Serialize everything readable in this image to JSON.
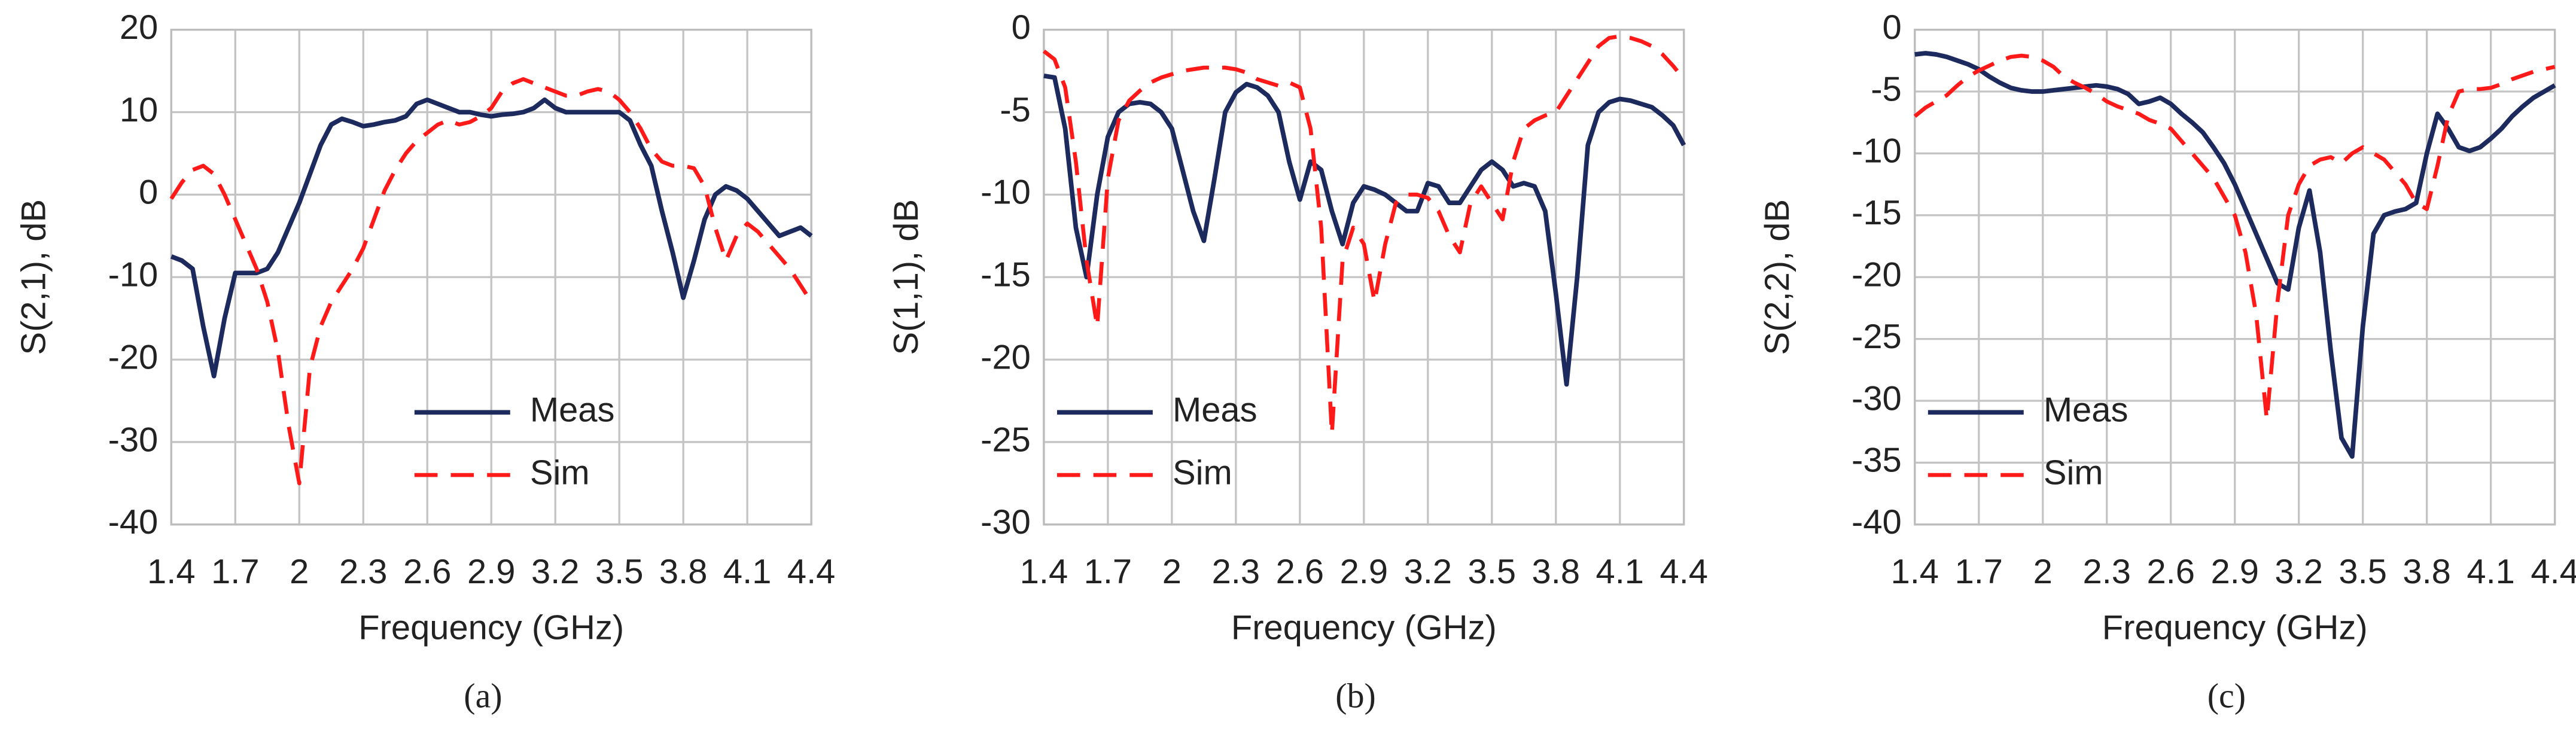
{
  "chart_data": [
    {
      "type": "line",
      "caption": "(a)",
      "x_label": "Frequency (GHz)",
      "y_label": "S(2,1), dB",
      "xlim": [
        1.4,
        4.4
      ],
      "xticks": [
        1.4,
        1.7,
        2,
        2.3,
        2.6,
        2.9,
        3.2,
        3.5,
        3.8,
        4.1,
        4.4
      ],
      "ylim": [
        -40,
        20
      ],
      "yticks": [
        -40,
        -30,
        -20,
        -10,
        0,
        10,
        20
      ],
      "grid": true,
      "legend": "lower center",
      "x": [
        1.4,
        1.45,
        1.5,
        1.55,
        1.6,
        1.65,
        1.7,
        1.75,
        1.8,
        1.85,
        1.9,
        1.95,
        2,
        2.05,
        2.1,
        2.15,
        2.2,
        2.25,
        2.3,
        2.35,
        2.4,
        2.45,
        2.5,
        2.55,
        2.6,
        2.65,
        2.7,
        2.75,
        2.8,
        2.85,
        2.9,
        2.95,
        3,
        3.05,
        3.1,
        3.15,
        3.2,
        3.25,
        3.3,
        3.35,
        3.4,
        3.45,
        3.5,
        3.55,
        3.6,
        3.65,
        3.7,
        3.75,
        3.8,
        3.85,
        3.9,
        3.95,
        4,
        4.05,
        4.1,
        4.15,
        4.2,
        4.25,
        4.3,
        4.35,
        4.4
      ],
      "series": [
        {
          "name": "Meas",
          "color": "#1c2a5e",
          "style": "solid",
          "values": [
            -7.5,
            -8,
            -9,
            -16,
            -22,
            -15,
            -9.5,
            -9.5,
            -9.5,
            -9,
            -7,
            -4,
            -1,
            2.5,
            6,
            8.5,
            9.2,
            8.8,
            8.3,
            8.5,
            8.8,
            9,
            9.5,
            11,
            11.5,
            11,
            10.5,
            10,
            10,
            9.7,
            9.5,
            9.7,
            9.8,
            10,
            10.5,
            11.5,
            10.5,
            10,
            10,
            10,
            10,
            10,
            10,
            9,
            6,
            3.5,
            -2,
            -7,
            -12.5,
            -8,
            -3,
            0,
            1,
            0.5,
            -0.5,
            -2,
            -3.5,
            -5,
            -4.5,
            -4,
            -5
          ]
        },
        {
          "name": "Sim",
          "color": "#ff1a1a",
          "style": "dashed",
          "values": [
            -0.5,
            1.5,
            3,
            3.5,
            2.5,
            0,
            -3,
            -6,
            -9,
            -13,
            -19,
            -28,
            -35,
            -21,
            -16,
            -13,
            -11,
            -9,
            -6.5,
            -3,
            0.5,
            3,
            5,
            6.5,
            7.5,
            8.5,
            9,
            8.5,
            8.8,
            9.5,
            10.5,
            12.5,
            13.5,
            14,
            13.5,
            13,
            12.5,
            12,
            12,
            12.5,
            12.8,
            12.5,
            11.5,
            10,
            8,
            5.5,
            4,
            3.5,
            3.5,
            3.2,
            1,
            -4,
            -8,
            -5,
            -3.5,
            -4.5,
            -6,
            -7.5,
            -9,
            -11,
            -13
          ]
        }
      ]
    },
    {
      "type": "line",
      "caption": "(b)",
      "x_label": "Frequency (GHz)",
      "y_label": "S(1,1), dB",
      "xlim": [
        1.4,
        4.4
      ],
      "xticks": [
        1.4,
        1.7,
        2,
        2.3,
        2.6,
        2.9,
        3.2,
        3.5,
        3.8,
        4.1,
        4.4
      ],
      "ylim": [
        -30,
        0
      ],
      "yticks": [
        -30,
        -25,
        -20,
        -15,
        -10,
        -5,
        0
      ],
      "grid": true,
      "legend": "lower left",
      "x": [
        1.4,
        1.45,
        1.5,
        1.55,
        1.6,
        1.65,
        1.7,
        1.75,
        1.8,
        1.85,
        1.9,
        1.95,
        2,
        2.05,
        2.1,
        2.15,
        2.2,
        2.25,
        2.3,
        2.35,
        2.4,
        2.45,
        2.5,
        2.55,
        2.6,
        2.65,
        2.7,
        2.75,
        2.8,
        2.85,
        2.9,
        2.95,
        3,
        3.05,
        3.1,
        3.15,
        3.2,
        3.25,
        3.3,
        3.35,
        3.4,
        3.45,
        3.5,
        3.55,
        3.6,
        3.65,
        3.7,
        3.75,
        3.8,
        3.85,
        3.9,
        3.95,
        4,
        4.05,
        4.1,
        4.15,
        4.2,
        4.25,
        4.3,
        4.35,
        4.4
      ],
      "series": [
        {
          "name": "Meas",
          "color": "#1c2a5e",
          "style": "solid",
          "values": [
            -2.8,
            -2.9,
            -6,
            -12,
            -15,
            -10,
            -6.5,
            -5,
            -4.5,
            -4.4,
            -4.5,
            -5,
            -6,
            -8.5,
            -11,
            -12.8,
            -9,
            -5,
            -3.8,
            -3.3,
            -3.5,
            -4,
            -5,
            -8,
            -10.3,
            -8,
            -8.5,
            -11,
            -13,
            -10.5,
            -9.5,
            -9.7,
            -10,
            -10.5,
            -11,
            -11,
            -9.3,
            -9.5,
            -10.5,
            -10.5,
            -9.5,
            -8.5,
            -8,
            -8.5,
            -9.5,
            -9.3,
            -9.5,
            -11,
            -16,
            -21.5,
            -15,
            -7,
            -5,
            -4.4,
            -4.2,
            -4.3,
            -4.5,
            -4.7,
            -5.2,
            -5.8,
            -7
          ]
        },
        {
          "name": "Sim",
          "color": "#ff1a1a",
          "style": "dashed",
          "values": [
            -1.3,
            -1.8,
            -3.5,
            -8,
            -14,
            -18,
            -9,
            -5.5,
            -4.3,
            -3.7,
            -3.2,
            -2.9,
            -2.7,
            -2.5,
            -2.4,
            -2.3,
            -2.3,
            -2.3,
            -2.4,
            -2.6,
            -3,
            -3.2,
            -3.4,
            -3.2,
            -3.5,
            -6,
            -12,
            -24.5,
            -14,
            -12,
            -13,
            -16.5,
            -13,
            -10.5,
            -10,
            -10,
            -10.2,
            -11,
            -12.5,
            -13.5,
            -10.5,
            -9.5,
            -10.5,
            -11.5,
            -8,
            -6,
            -5.5,
            -5.2,
            -5,
            -4,
            -3,
            -2,
            -1,
            -0.5,
            -0.4,
            -0.5,
            -0.7,
            -1,
            -1.5,
            -2.2,
            -3
          ]
        }
      ]
    },
    {
      "type": "line",
      "caption": "(c)",
      "x_label": "Frequency (GHz)",
      "y_label": "S(2,2), dB",
      "xlim": [
        1.4,
        4.4
      ],
      "xticks": [
        1.4,
        1.7,
        2,
        2.3,
        2.6,
        2.9,
        3.2,
        3.5,
        3.8,
        4.1,
        4.4
      ],
      "ylim": [
        -40,
        0
      ],
      "yticks": [
        -40,
        -35,
        -30,
        -25,
        -20,
        -15,
        -10,
        -5,
        0
      ],
      "grid": true,
      "legend": "lower left",
      "x": [
        1.4,
        1.45,
        1.5,
        1.55,
        1.6,
        1.65,
        1.7,
        1.75,
        1.8,
        1.85,
        1.9,
        1.95,
        2,
        2.05,
        2.1,
        2.15,
        2.2,
        2.25,
        2.3,
        2.35,
        2.4,
        2.45,
        2.5,
        2.55,
        2.6,
        2.65,
        2.7,
        2.75,
        2.8,
        2.85,
        2.9,
        2.95,
        3,
        3.05,
        3.1,
        3.15,
        3.2,
        3.25,
        3.3,
        3.35,
        3.4,
        3.45,
        3.5,
        3.55,
        3.6,
        3.65,
        3.7,
        3.75,
        3.8,
        3.85,
        3.9,
        3.95,
        4,
        4.05,
        4.1,
        4.15,
        4.2,
        4.25,
        4.3,
        4.35,
        4.4
      ],
      "series": [
        {
          "name": "Meas",
          "color": "#1c2a5e",
          "style": "solid",
          "values": [
            -2,
            -1.9,
            -2,
            -2.2,
            -2.5,
            -2.8,
            -3.2,
            -3.8,
            -4.3,
            -4.7,
            -4.9,
            -5,
            -5,
            -4.9,
            -4.8,
            -4.7,
            -4.6,
            -4.5,
            -4.6,
            -4.8,
            -5.2,
            -6,
            -5.8,
            -5.5,
            -6,
            -6.8,
            -7.5,
            -8.3,
            -9.5,
            -10.8,
            -12.5,
            -14.5,
            -16.5,
            -18.5,
            -20.5,
            -21,
            -16,
            -13,
            -18,
            -26,
            -33,
            -34.5,
            -24,
            -16.5,
            -15,
            -14.7,
            -14.5,
            -14,
            -10,
            -6.8,
            -8,
            -9.5,
            -9.8,
            -9.5,
            -8.8,
            -8,
            -7,
            -6.2,
            -5.5,
            -5,
            -4.5
          ]
        },
        {
          "name": "Sim",
          "color": "#ff1a1a",
          "style": "dashed",
          "values": [
            -7,
            -6.3,
            -5.8,
            -5.3,
            -4.5,
            -3.8,
            -3.3,
            -2.9,
            -2.5,
            -2.2,
            -2.1,
            -2.2,
            -2.5,
            -3,
            -3.8,
            -4.3,
            -4.7,
            -5.2,
            -5.8,
            -6.2,
            -6.5,
            -6.8,
            -7.3,
            -7.6,
            -8,
            -9,
            -10,
            -11,
            -12,
            -13.5,
            -15,
            -18,
            -23,
            -31.5,
            -22,
            -15,
            -12.5,
            -11,
            -10.5,
            -10.3,
            -10.8,
            -10,
            -9.5,
            -10,
            -10.5,
            -11.5,
            -12.5,
            -14,
            -14.5,
            -11,
            -7,
            -5,
            -4.8,
            -4.8,
            -4.7,
            -4.4,
            -4,
            -3.7,
            -3.4,
            -3.2,
            -3
          ]
        }
      ]
    }
  ]
}
